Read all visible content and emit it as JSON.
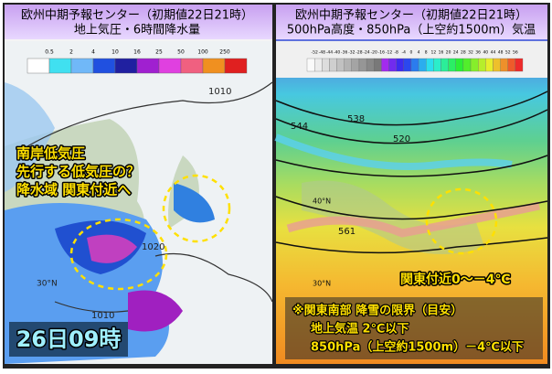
{
  "left_panel": {
    "title": "欧州中期予報センター（初期値22日21時）",
    "subtitle": "地上気圧・6時間降水量",
    "colorbar_labels": [
      "0.5",
      "2",
      "4",
      "10",
      "16",
      "25",
      "50",
      "100",
      "250"
    ],
    "isobar_labels": [
      "1010",
      "1020",
      "1010"
    ],
    "latitude_labels": [
      "30°N"
    ],
    "annotation": [
      "南岸低気圧",
      "先行する低気圧の？",
      "降水域 関東付近へ"
    ],
    "time_label": "26日09時"
  },
  "right_panel": {
    "title": "欧州中期予報センター（初期値22日21時）",
    "subtitle": "500hPa高度・850hPa（上空約1500m）気温",
    "colorbar_labels": [
      "-52",
      "-48",
      "-44",
      "-40",
      "-36",
      "-32",
      "-28",
      "-24",
      "-20",
      "-16",
      "-12",
      "-8",
      "-4",
      "0",
      "4",
      "8",
      "12",
      "16",
      "20",
      "24",
      "28",
      "32",
      "36",
      "40",
      "44",
      "48",
      "52",
      "56"
    ],
    "contour_labels": [
      "544",
      "538",
      "520",
      "561"
    ],
    "latitude_labels": [
      "40°N",
      "30°N"
    ],
    "callout": "関東付近0～－4℃",
    "note": [
      "※関東南部 降雪の限界（目安）",
      "地上気温 2℃以下",
      "850hPa（上空約1500m）－4℃以下"
    ]
  }
}
